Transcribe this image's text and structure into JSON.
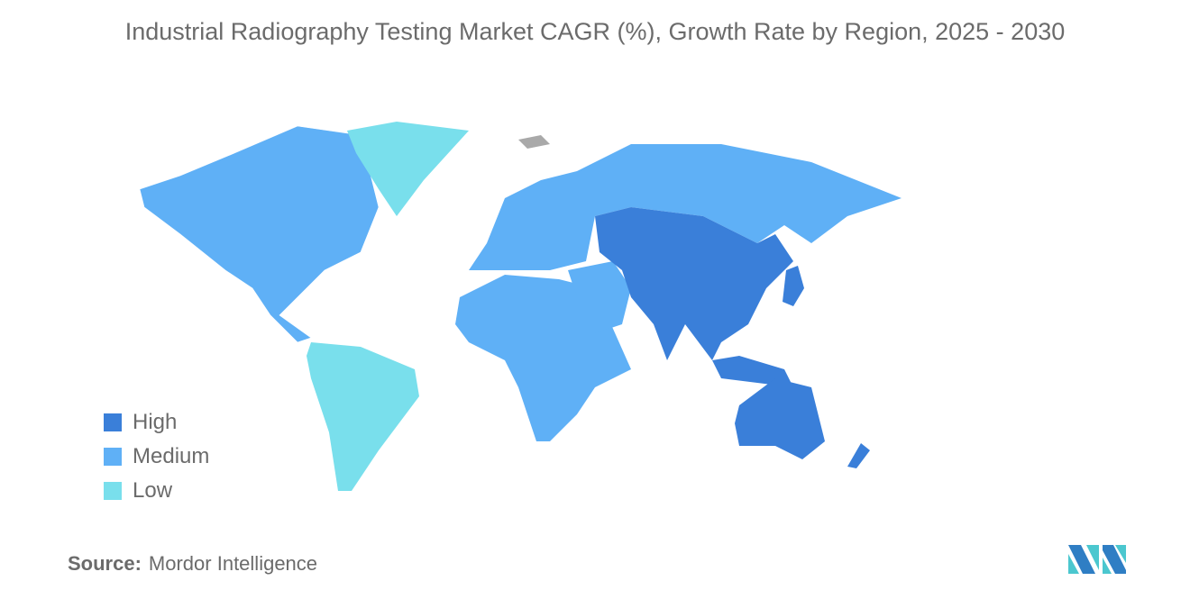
{
  "title": "Industrial Radiography Testing Market CAGR (%), Growth Rate by Region, 2025 - 2030",
  "legend": [
    {
      "label": "High",
      "color": "#3a7fd9"
    },
    {
      "label": "Medium",
      "color": "#5fb0f6"
    },
    {
      "label": "Low",
      "color": "#79dfec"
    }
  ],
  "no_data_color": "#a9a9a9",
  "regions": {
    "asia_pacific": "High",
    "north_america": "Medium",
    "europe": "Medium",
    "middle_east_africa": "Medium",
    "south_america": "Low",
    "greenland": "Low"
  },
  "source": {
    "label": "Source:",
    "value": "Mordor Intelligence"
  },
  "logo": {
    "colors": [
      "#2f7ec4",
      "#4bc7cf"
    ]
  }
}
